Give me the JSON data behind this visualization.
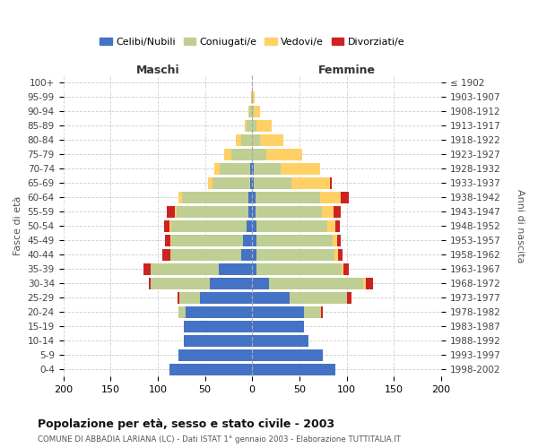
{
  "age_groups": [
    "0-4",
    "5-9",
    "10-14",
    "15-19",
    "20-24",
    "25-29",
    "30-34",
    "35-39",
    "40-44",
    "45-49",
    "50-54",
    "55-59",
    "60-64",
    "65-69",
    "70-74",
    "75-79",
    "80-84",
    "85-89",
    "90-94",
    "95-99",
    "100+"
  ],
  "birth_years": [
    "1998-2002",
    "1993-1997",
    "1988-1992",
    "1983-1987",
    "1978-1982",
    "1973-1977",
    "1968-1972",
    "1963-1967",
    "1958-1962",
    "1953-1957",
    "1948-1952",
    "1943-1947",
    "1938-1942",
    "1933-1937",
    "1928-1932",
    "1923-1927",
    "1918-1922",
    "1913-1917",
    "1908-1912",
    "1903-1907",
    "≤ 1902"
  ],
  "males_celibi": [
    88,
    78,
    72,
    72,
    70,
    55,
    45,
    35,
    12,
    10,
    6,
    4,
    4,
    2,
    2,
    0,
    0,
    0,
    0,
    0,
    0
  ],
  "males_coniugati": [
    0,
    0,
    0,
    0,
    8,
    22,
    62,
    72,
    75,
    76,
    80,
    76,
    70,
    40,
    32,
    22,
    12,
    6,
    3,
    1,
    0
  ],
  "males_vedovi": [
    0,
    0,
    0,
    0,
    0,
    0,
    0,
    0,
    0,
    1,
    2,
    2,
    4,
    5,
    6,
    8,
    5,
    2,
    1,
    0,
    0
  ],
  "males_divorziati": [
    0,
    0,
    0,
    0,
    0,
    2,
    2,
    8,
    8,
    5,
    5,
    8,
    0,
    0,
    0,
    0,
    0,
    0,
    0,
    0,
    0
  ],
  "females_nubili": [
    88,
    75,
    60,
    55,
    55,
    40,
    18,
    5,
    5,
    5,
    5,
    4,
    4,
    2,
    2,
    0,
    0,
    0,
    0,
    0,
    0
  ],
  "females_coniugate": [
    0,
    0,
    0,
    0,
    18,
    60,
    100,
    90,
    82,
    80,
    75,
    70,
    68,
    40,
    28,
    15,
    8,
    5,
    2,
    1,
    0
  ],
  "females_vedove": [
    0,
    0,
    0,
    0,
    0,
    0,
    2,
    2,
    4,
    5,
    8,
    12,
    22,
    40,
    42,
    38,
    25,
    16,
    6,
    2,
    0
  ],
  "females_divorziate": [
    0,
    0,
    0,
    0,
    2,
    5,
    8,
    5,
    5,
    4,
    5,
    8,
    8,
    2,
    0,
    0,
    0,
    0,
    0,
    0,
    0
  ],
  "colors_celibi": "#4472C4",
  "colors_coniugati": "#BFCE93",
  "colors_vedovi": "#FFD066",
  "colors_divorziati": "#CC2222",
  "xlim": 200,
  "title": "Popolazione per età, sesso e stato civile - 2003",
  "subtitle": "COMUNE DI ABBADIA LARIANA (LC) - Dati ISTAT 1° gennaio 2003 - Elaborazione TUTTITALIA.IT",
  "ylabel_left": "Fasce di età",
  "ylabel_right": "Anni di nascita",
  "label_maschi": "Maschi",
  "label_femmine": "Femmine",
  "legend_labels": [
    "Celibi/Nubili",
    "Coniugati/e",
    "Vedovi/e",
    "Divorziati/e"
  ],
  "bg_color": "#ffffff",
  "grid_color": "#cccccc"
}
